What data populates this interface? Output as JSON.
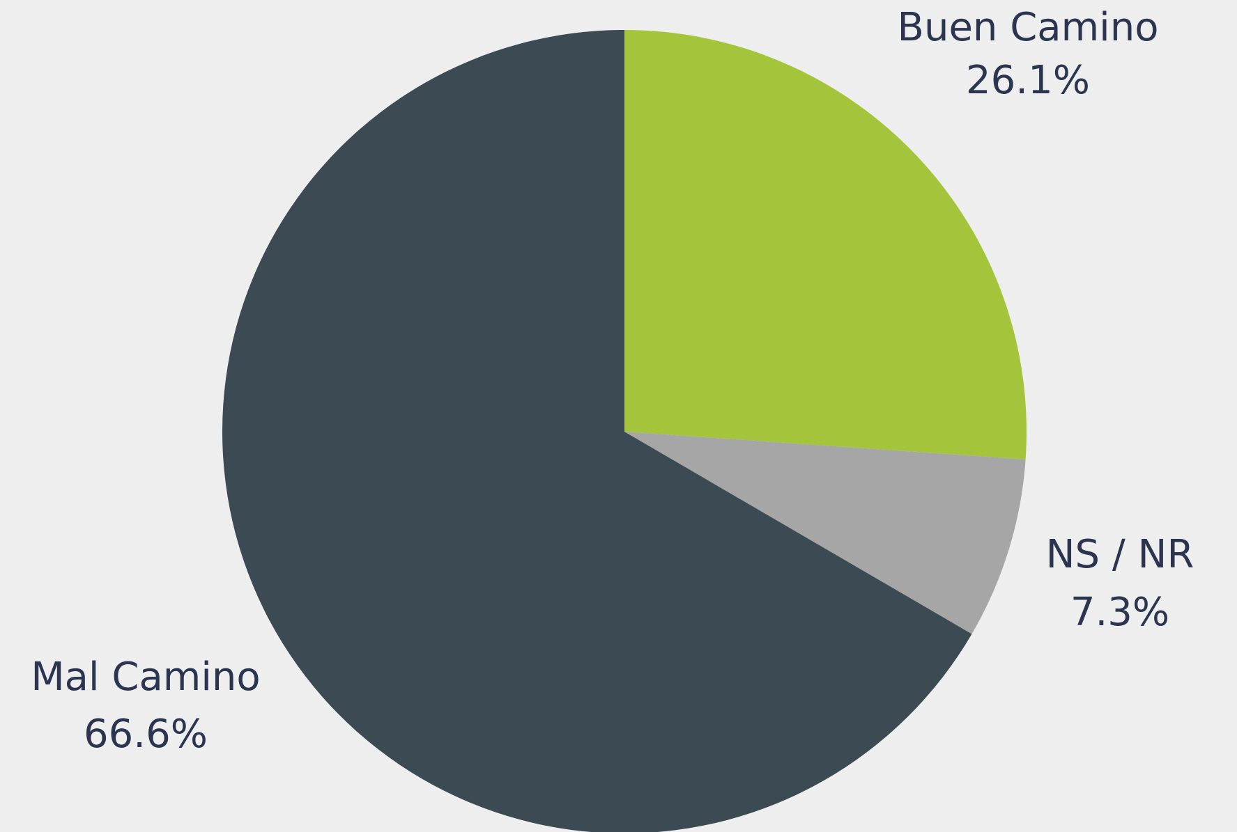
{
  "chart_data": {
    "type": "pie",
    "categories": [
      "Buen Camino",
      "NS / NR",
      "Mal Camino"
    ],
    "values": [
      26.1,
      7.3,
      66.6
    ],
    "value_labels": [
      "26.1%",
      "7.3%",
      "66.6%"
    ],
    "colors": [
      "#a3c43b",
      "#a6a6a6",
      "#3c4a54"
    ]
  }
}
